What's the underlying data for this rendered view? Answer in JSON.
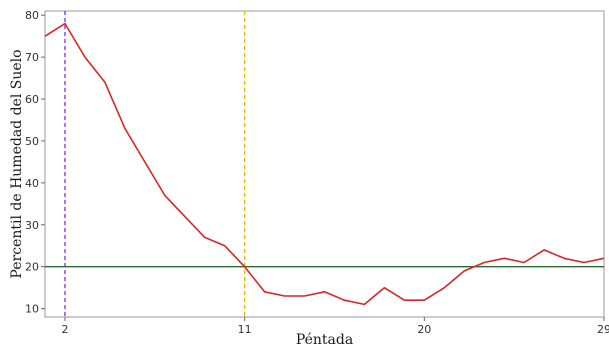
{
  "chart_data": {
    "type": "line",
    "title": "",
    "xlabel": "Péntada",
    "ylabel": "Percentil de Humedad del Suelo",
    "xlim": [
      1,
      29
    ],
    "ylim": [
      8,
      81
    ],
    "x_ticks": [
      2,
      11,
      20,
      29
    ],
    "y_ticks": [
      10,
      20,
      30,
      40,
      50,
      60,
      70,
      80
    ],
    "grid": false,
    "series": [
      {
        "x": [
          1,
          2,
          3,
          4,
          5,
          6,
          7,
          8,
          9,
          10,
          11,
          12,
          13,
          14,
          15,
          16,
          17,
          18,
          19,
          20,
          21,
          22,
          23,
          24,
          25,
          26,
          27,
          28,
          29
        ],
        "values": [
          75,
          78,
          70,
          64,
          53,
          45,
          37,
          32,
          27,
          25,
          20,
          14,
          13,
          13,
          14,
          12,
          11,
          15,
          12,
          12,
          15,
          19,
          21,
          22,
          21,
          24,
          22,
          21,
          22
        ],
        "color": "#d62728"
      }
    ],
    "reference_lines": [
      {
        "orientation": "vertical",
        "value": 2,
        "color": "#8a2be2",
        "style": "dashed"
      },
      {
        "orientation": "vertical",
        "value": 11,
        "color": "#e6b800",
        "style": "dashed"
      },
      {
        "orientation": "horizontal",
        "value": 20,
        "color": "#2e6b2e",
        "style": "solid"
      }
    ]
  }
}
